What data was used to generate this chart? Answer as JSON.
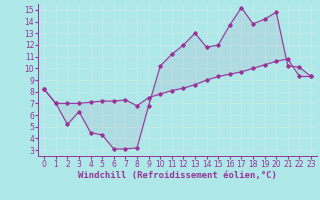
{
  "xlabel": "Windchill (Refroidissement éolien,°C)",
  "xlim": [
    -0.5,
    23.5
  ],
  "ylim": [
    2.5,
    15.5
  ],
  "xticks": [
    0,
    1,
    2,
    3,
    4,
    5,
    6,
    7,
    8,
    9,
    10,
    11,
    12,
    13,
    14,
    15,
    16,
    17,
    18,
    19,
    20,
    21,
    22,
    23
  ],
  "yticks": [
    3,
    4,
    5,
    6,
    7,
    8,
    9,
    10,
    11,
    12,
    13,
    14,
    15
  ],
  "line1_x": [
    0,
    1,
    2,
    3,
    4,
    5,
    6,
    7,
    8,
    9,
    10,
    11,
    12,
    13,
    14,
    15,
    16,
    17,
    18,
    19,
    20,
    21,
    22,
    23
  ],
  "line1_y": [
    8.2,
    7.0,
    5.2,
    6.3,
    4.5,
    4.3,
    3.1,
    3.1,
    3.2,
    6.8,
    10.2,
    11.2,
    12.0,
    13.0,
    11.8,
    12.0,
    13.7,
    15.2,
    13.8,
    14.2,
    14.8,
    10.2,
    10.1,
    9.3
  ],
  "line2_x": [
    0,
    1,
    2,
    3,
    4,
    5,
    6,
    7,
    8,
    9,
    10,
    11,
    12,
    13,
    14,
    15,
    16,
    17,
    18,
    19,
    20,
    21,
    22,
    23
  ],
  "line2_y": [
    8.2,
    7.0,
    7.0,
    7.0,
    7.1,
    7.2,
    7.2,
    7.3,
    6.8,
    7.5,
    7.8,
    8.1,
    8.3,
    8.6,
    9.0,
    9.3,
    9.5,
    9.7,
    10.0,
    10.3,
    10.6,
    10.8,
    9.3,
    9.3
  ],
  "line_color": "#993399",
  "bg_color": "#aee8e8",
  "grid_color": "#c8e8e8",
  "marker": "D",
  "marker_size": 1.8,
  "linewidth": 0.8,
  "tick_labelsize": 5.5,
  "xlabel_fontsize": 6.5
}
